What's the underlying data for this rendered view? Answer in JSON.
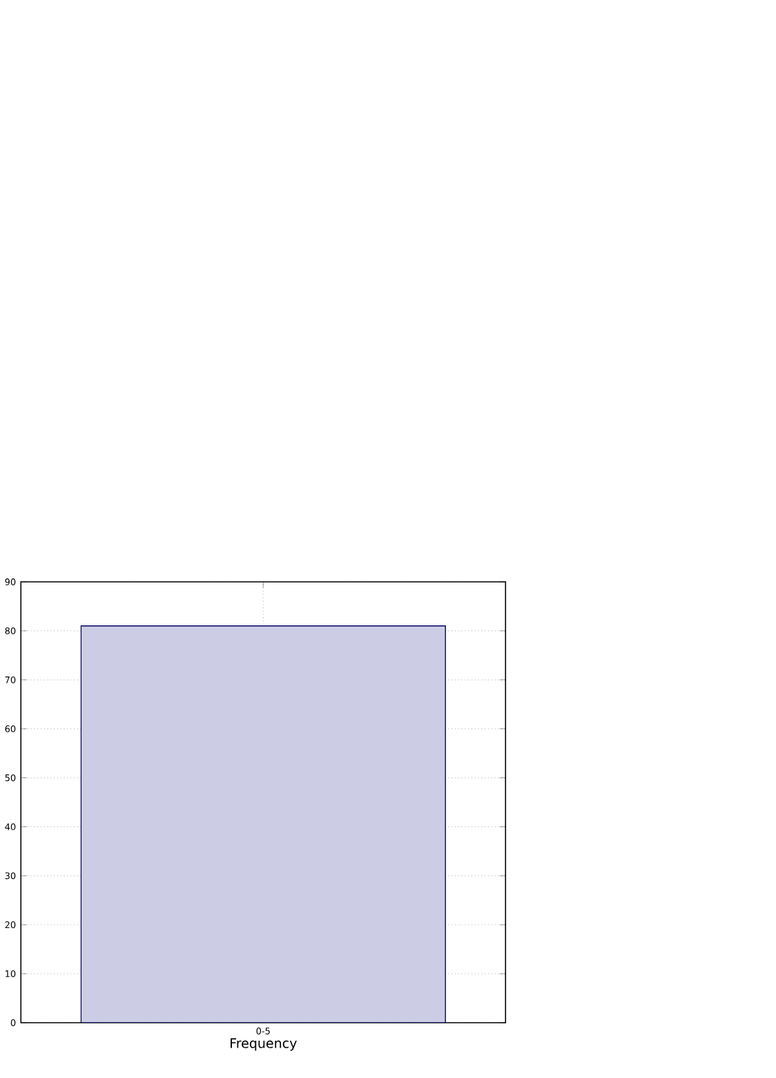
{
  "chart_data": {
    "type": "bar",
    "xlabel": "Frequency",
    "categories": [
      "0-5"
    ],
    "values": [
      81
    ],
    "color": "#cccce5",
    "ylim": [
      0,
      90
    ],
    "yticks": [
      0,
      10,
      20,
      30,
      40,
      50,
      60,
      70,
      80,
      90
    ],
    "grid": true
  }
}
